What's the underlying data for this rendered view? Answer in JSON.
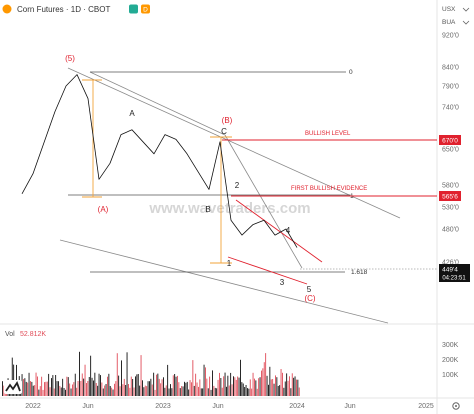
{
  "header": {
    "title": "Corn Futures · 1D · CBOT",
    "badge_green": "",
    "badge_orange": "D"
  },
  "axis_panel": {
    "currency": "USX",
    "unit": "BUA"
  },
  "watermark": "www.wavetraders.com",
  "volume": {
    "label": "Vol",
    "value": "52.812K"
  },
  "price_tags": {
    "last": "449'4",
    "countdown": "04:23:51"
  },
  "annotations": {
    "wave_5_top": "(5)",
    "wave_a": "(A)",
    "wave_b": "(B)",
    "wave_c": "(C)",
    "sub_a": "A",
    "sub_b": "B",
    "sub_c": "C",
    "sub_1": "1",
    "sub_2": "2",
    "sub_3": "3",
    "sub_4": "4",
    "sub_5": "5",
    "bullish_level": "BULLISH LEVEL",
    "first_bullish": "FIRST BULLISH EVIDENCE",
    "fib_0": "0",
    "fib_1": "1",
    "fib_1618": "1.618"
  },
  "colors": {
    "candles": "#111111",
    "red": "#e0212e",
    "orange": "#f2a33a",
    "channel": "#8a8a8a",
    "volume": "#e04b57"
  },
  "chart_data": {
    "type": "line",
    "title": "Corn Futures · 1D · CBOT",
    "x_tick_labels": [
      "2022",
      "Jun",
      "2023",
      "Jun",
      "2024",
      "Jun",
      "2025"
    ],
    "y_tick_labels": [
      "920'0",
      "840'0",
      "790'0",
      "740'0",
      "650'0",
      "580'0",
      "530'0",
      "480'0",
      "426'0"
    ],
    "y_price_levels": [
      920,
      840,
      790,
      740,
      700,
      650,
      610,
      580,
      530,
      480,
      426
    ],
    "price_path": [
      {
        "x": "2021-12",
        "y": 560
      },
      {
        "x": "2022-01",
        "y": 600
      },
      {
        "x": "2022-03",
        "y": 730
      },
      {
        "x": "2022-04",
        "y": 790
      },
      {
        "x": "2022-05",
        "y": 820
      },
      {
        "x": "2022-06",
        "y": 760
      },
      {
        "x": "2022-07",
        "y": 590
      },
      {
        "x": "2022-08",
        "y": 620
      },
      {
        "x": "2022-09",
        "y": 680
      },
      {
        "x": "2022-10",
        "y": 690
      },
      {
        "x": "2022-12",
        "y": 640
      },
      {
        "x": "2023-01",
        "y": 680
      },
      {
        "x": "2023-02",
        "y": 670
      },
      {
        "x": "2023-03",
        "y": 640
      },
      {
        "x": "2023-05",
        "y": 570
      },
      {
        "x": "2023-06",
        "y": 665
      },
      {
        "x": "2023-07",
        "y": 500
      },
      {
        "x": "2023-08",
        "y": 470
      },
      {
        "x": "2023-09",
        "y": 490
      },
      {
        "x": "2023-10",
        "y": 500
      },
      {
        "x": "2023-11",
        "y": 470
      },
      {
        "x": "2023-12",
        "y": 480
      },
      {
        "x": "2024-01",
        "y": 449.5
      }
    ],
    "levels": [
      {
        "name": "BULLISH LEVEL",
        "value": 670
      },
      {
        "name": "FIRST BULLISH EVIDENCE",
        "value": 565.6
      },
      {
        "name": "1.618",
        "value": 432
      }
    ],
    "tags": [
      {
        "value": "670'0",
        "color": "#e0212e"
      },
      {
        "value": "565'6",
        "color": "#e0212e"
      },
      {
        "value": "449'4",
        "color": "#111111"
      }
    ],
    "volume": {
      "label": "Vol",
      "last": "52.812K",
      "y_tick_labels": [
        "300K",
        "200K",
        "100K"
      ]
    }
  }
}
